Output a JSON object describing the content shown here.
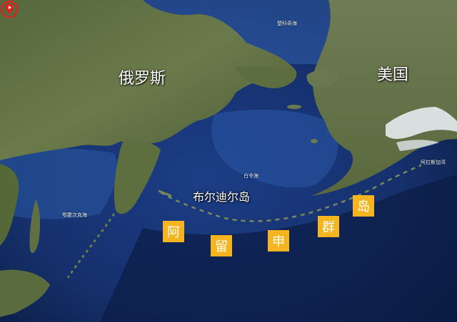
{
  "map": {
    "labels": {
      "russia": "俄罗斯",
      "usa": "美国",
      "island_name": "布尔迪尔岛",
      "chukchi_sea": "楚科奇海",
      "bering_sea": "白令海",
      "okhotsk_sea": "鄂霍次克海",
      "gulf_of_alaska": "阿拉斯加湾"
    },
    "island_chain_tiles": [
      "阿",
      "留",
      "申",
      "群",
      "岛"
    ],
    "colors": {
      "tile": "#f6b51e",
      "marker_ring": "#e0221b",
      "ocean_deep": "#0d2247",
      "land": "#5b6f42"
    },
    "marker_icon": "location-pin-icon"
  }
}
